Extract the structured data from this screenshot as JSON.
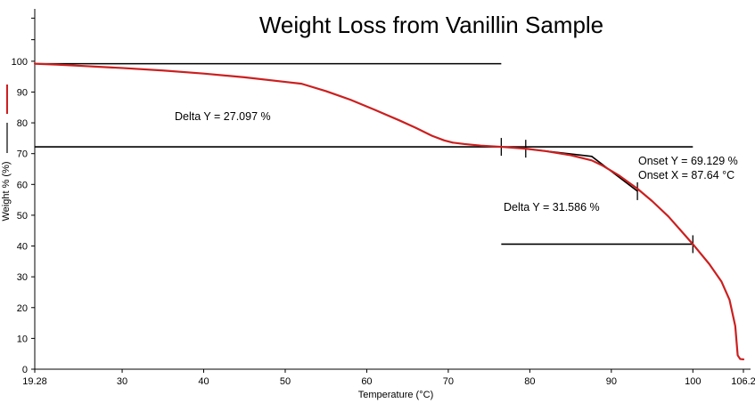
{
  "chart_data": {
    "type": "line",
    "title": "Weight Loss from Vanillin Sample",
    "xlabel": "Temperature (°C)",
    "ylabel": "Weight % (%)",
    "xlim": [
      19.28,
      106.2
    ],
    "ylim": [
      0,
      117
    ],
    "x_ticks": [
      19.28,
      30,
      40,
      50,
      60,
      70,
      80,
      90,
      100,
      106.2
    ],
    "x_tick_labels": [
      "19.28",
      "30",
      "40",
      "50",
      "60",
      "70",
      "80",
      "90",
      "100",
      "106.2"
    ],
    "y_ticks": [
      0,
      10,
      20,
      30,
      40,
      50,
      60,
      70,
      80,
      90,
      100
    ],
    "y_tick_labels": [
      "0",
      "10",
      "20",
      "30",
      "40",
      "50",
      "60",
      "70",
      "80",
      "90",
      "100"
    ],
    "grid": false,
    "legend": "left vertical strip",
    "series": [
      {
        "color": "#cc1f1f",
        "x": [
          19.28,
          22,
          25,
          30,
          35,
          40,
          45,
          50,
          52,
          55,
          58,
          61,
          64,
          66,
          68,
          69.5,
          70.5,
          72,
          74,
          76.5,
          79.5,
          82,
          85,
          87.6,
          89,
          91,
          93.2,
          95,
          97,
          100,
          102,
          103.5,
          104.5,
          105.2,
          105.5,
          105.8,
          106.2
        ],
        "y": [
          99.2,
          98.9,
          98.5,
          97.8,
          97.0,
          96.0,
          94.8,
          93.3,
          92.7,
          90.3,
          87.5,
          84.2,
          80.8,
          78.4,
          75.8,
          74.3,
          73.6,
          73.1,
          72.6,
          72.2,
          71.6,
          70.8,
          69.5,
          67.8,
          66.0,
          62.8,
          58.6,
          54.6,
          49.6,
          40.6,
          34.2,
          28.5,
          22.5,
          14.0,
          4.5,
          3.3,
          3.2
        ]
      }
    ],
    "annotations": [
      {
        "text": "Delta Y = 27.097 %"
      },
      {
        "text": "Delta Y = 31.586 %"
      },
      {
        "text": "Onset Y = 69.129 %"
      },
      {
        "text": "Onset X = 87.64 °C"
      }
    ],
    "analysis_marks": [
      {
        "kind": "hline",
        "x1": 19.28,
        "x2": 76.5,
        "y": 99.2
      },
      {
        "kind": "hline",
        "x1": 19.28,
        "x2": 100.0,
        "y": 72.2
      },
      {
        "kind": "hline",
        "x1": 76.5,
        "x2": 100.0,
        "y": 40.6
      },
      {
        "kind": "tick",
        "x": 76.5,
        "y": 72.2
      },
      {
        "kind": "tick",
        "x": 79.5,
        "y": 71.6
      },
      {
        "kind": "tick",
        "x": 93.2,
        "y": 57.8
      },
      {
        "kind": "tick",
        "x": 100.0,
        "y": 40.6
      },
      {
        "kind": "tangent",
        "x": [
          79.5,
          87.6,
          93.2
        ],
        "y": [
          71.6,
          69.1,
          57.8
        ]
      }
    ]
  }
}
